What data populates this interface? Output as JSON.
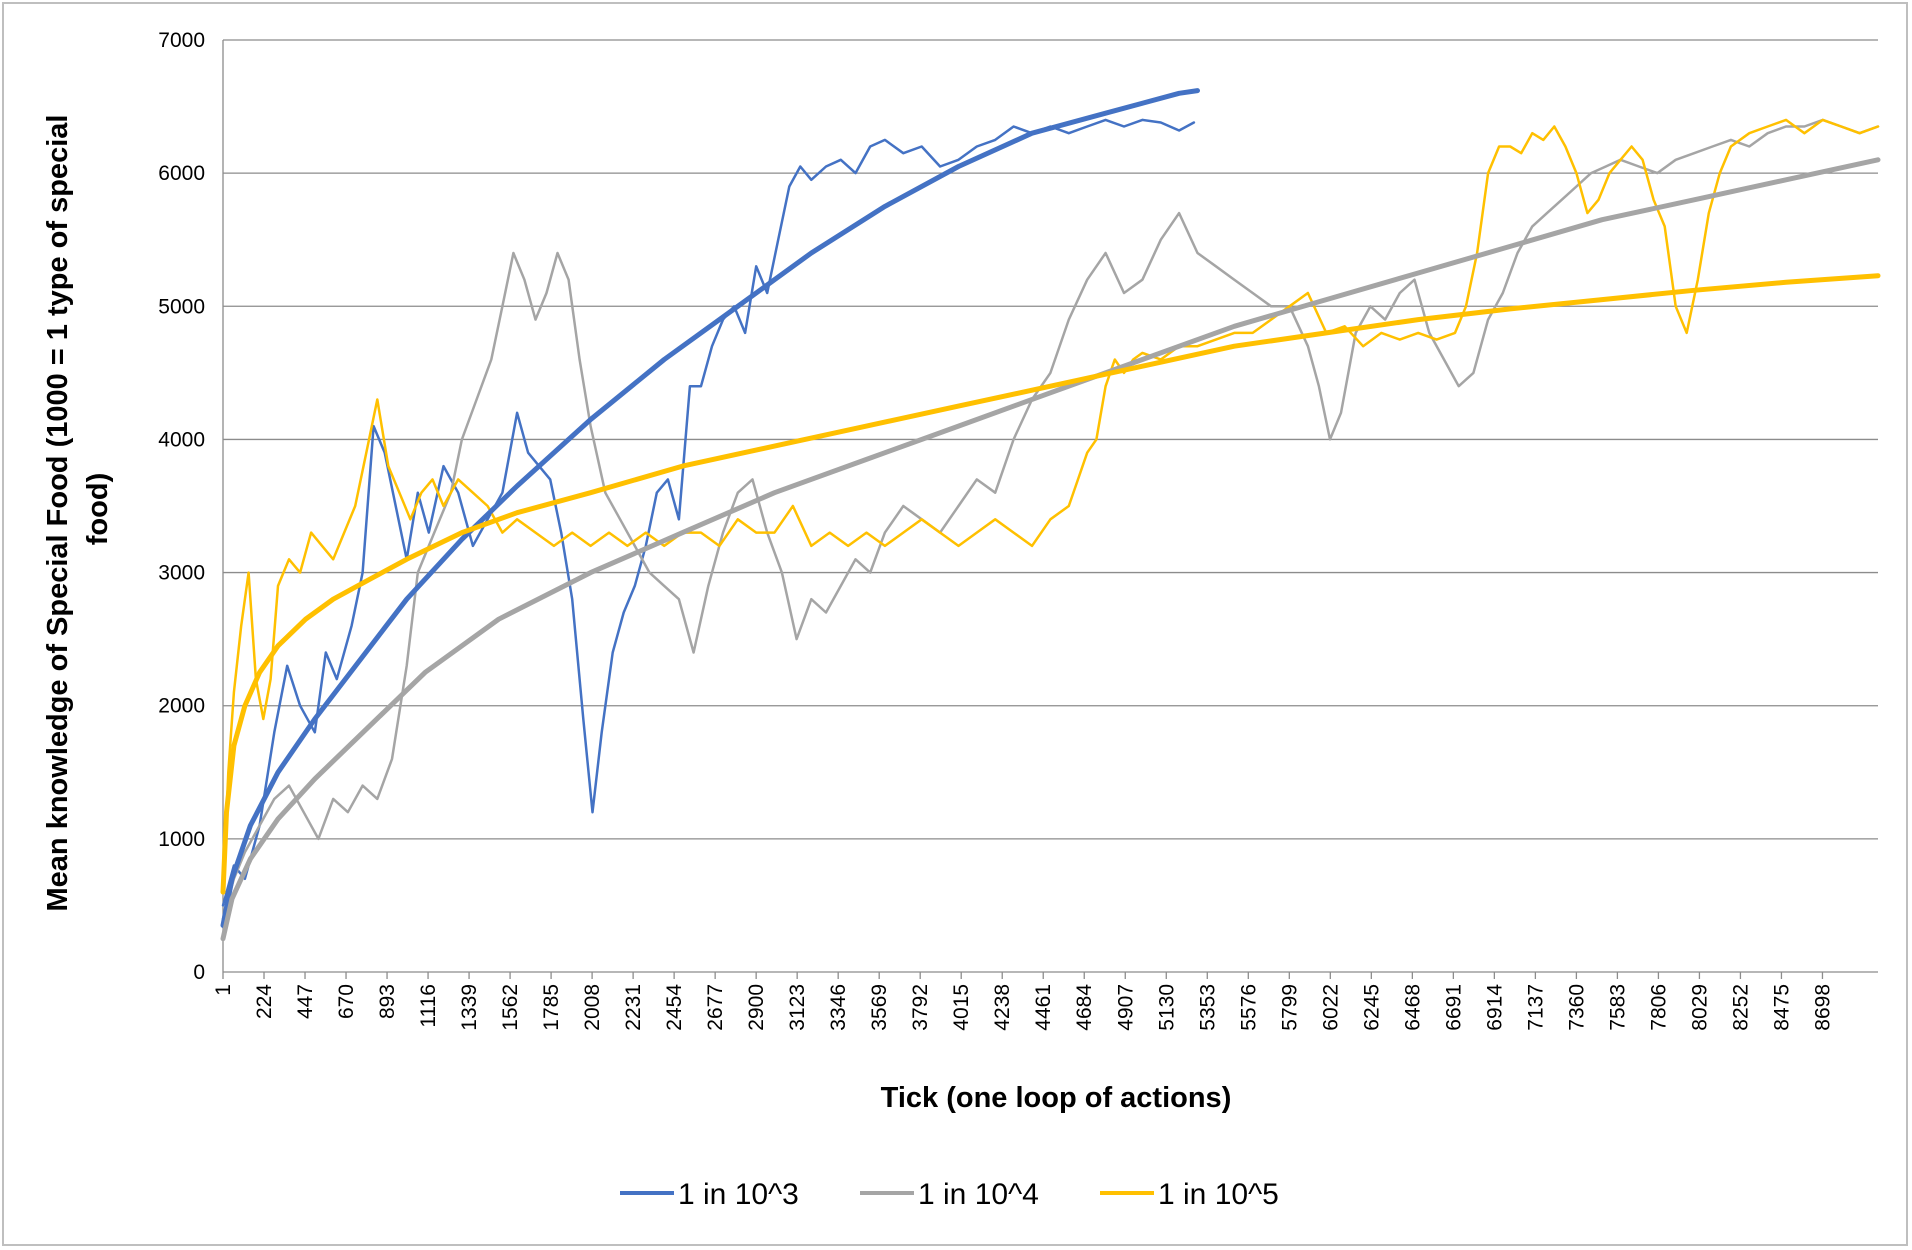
{
  "chart_data": {
    "type": "line",
    "title": "",
    "xlabel": "Tick (one loop of actions)",
    "ylabel_lines": [
      "Mean knowledge of Special Food (1000 = 1 type of special",
      "food)"
    ],
    "ylim": [
      0,
      7000
    ],
    "yticks": [
      0,
      1000,
      2000,
      3000,
      4000,
      5000,
      6000,
      7000
    ],
    "xlim": [
      1,
      9000
    ],
    "xticks": [
      "1",
      "224",
      "447",
      "670",
      "893",
      "1116",
      "1339",
      "1562",
      "1785",
      "2008",
      "2231",
      "2454",
      "2677",
      "2900",
      "3123",
      "3346",
      "3569",
      "3792",
      "4015",
      "4238",
      "4461",
      "4684",
      "4907",
      "5130",
      "5353",
      "5576",
      "5799",
      "6022",
      "6245",
      "6468",
      "6691",
      "6914",
      "7137",
      "7360",
      "7583",
      "7806",
      "8029",
      "8252",
      "8475",
      "8698"
    ],
    "grid": "horizontal",
    "legend_position": "bottom",
    "series": [
      {
        "name": "1 in 10^3",
        "color": "#4472c4",
        "x": [
          1,
          60,
          120,
          200,
          280,
          350,
          420,
          500,
          560,
          620,
          700,
          760,
          820,
          880,
          940,
          1000,
          1060,
          1120,
          1200,
          1280,
          1360,
          1440,
          1520,
          1600,
          1660,
          1720,
          1780,
          1840,
          1900,
          1960,
          2010,
          2060,
          2120,
          2180,
          2240,
          2300,
          2360,
          2420,
          2480,
          2540,
          2600,
          2660,
          2720,
          2780,
          2840,
          2900,
          2960,
          3020,
          3080,
          3140,
          3200,
          3280,
          3360,
          3440,
          3520,
          3600,
          3700,
          3800,
          3900,
          4000,
          4100,
          4200,
          4300,
          4400,
          4500,
          4600,
          4700,
          4800,
          4900,
          5000,
          5100,
          5200,
          5280
        ],
        "y": [
          500,
          800,
          700,
          1100,
          1800,
          2300,
          2000,
          1800,
          2400,
          2200,
          2600,
          3000,
          4100,
          3900,
          3500,
          3100,
          3600,
          3300,
          3800,
          3600,
          3200,
          3400,
          3600,
          4200,
          3900,
          3800,
          3700,
          3300,
          2800,
          1900,
          1200,
          1800,
          2400,
          2700,
          2900,
          3200,
          3600,
          3700,
          3400,
          4400,
          4400,
          4700,
          4900,
          5000,
          4800,
          5300,
          5100,
          5500,
          5900,
          6050,
          5950,
          6050,
          6100,
          6000,
          6200,
          6250,
          6150,
          6200,
          6050,
          6100,
          6200,
          6250,
          6350,
          6300,
          6350,
          6300,
          6350,
          6400,
          6350,
          6400,
          6380,
          6320,
          6380
        ]
      },
      {
        "name": "1 in 10^4",
        "color": "#a5a5a5",
        "x": [
          1,
          60,
          120,
          200,
          280,
          360,
          440,
          520,
          600,
          680,
          760,
          840,
          920,
          1000,
          1060,
          1120,
          1180,
          1240,
          1300,
          1380,
          1460,
          1520,
          1580,
          1640,
          1700,
          1760,
          1820,
          1880,
          1940,
          2000,
          2080,
          2160,
          2240,
          2320,
          2400,
          2480,
          2560,
          2640,
          2720,
          2800,
          2880,
          2960,
          3040,
          3120,
          3200,
          3280,
          3360,
          3440,
          3520,
          3600,
          3700,
          3800,
          3900,
          4000,
          4100,
          4200,
          4300,
          4400,
          4500,
          4600,
          4700,
          4800,
          4900,
          5000,
          5100,
          5200,
          5300,
          5400,
          5500,
          5600,
          5700,
          5800,
          5900,
          5960,
          6020,
          6080,
          6160,
          6240,
          6320,
          6400,
          6480,
          6560,
          6640,
          6720,
          6800,
          6880,
          6960,
          7040,
          7120,
          7200,
          7280,
          7360,
          7440,
          7520,
          7600,
          7700,
          7800,
          7900,
          8000,
          8100,
          8200,
          8300,
          8400,
          8500,
          8600,
          8700,
          8800,
          8900,
          9000
        ],
        "y": [
          400,
          700,
          900,
          1100,
          1300,
          1400,
          1200,
          1000,
          1300,
          1200,
          1400,
          1300,
          1600,
          2300,
          3000,
          3200,
          3400,
          3600,
          4000,
          4300,
          4600,
          5000,
          5400,
          5200,
          4900,
          5100,
          5400,
          5200,
          4600,
          4100,
          3600,
          3400,
          3200,
          3000,
          2900,
          2800,
          2400,
          2900,
          3300,
          3600,
          3700,
          3300,
          3000,
          2500,
          2800,
          2700,
          2900,
          3100,
          3000,
          3300,
          3500,
          3400,
          3300,
          3500,
          3700,
          3600,
          4000,
          4300,
          4500,
          4900,
          5200,
          5400,
          5100,
          5200,
          5500,
          5700,
          5400,
          5300,
          5200,
          5100,
          5000,
          5000,
          4700,
          4400,
          4000,
          4200,
          4800,
          5000,
          4900,
          5100,
          5200,
          4800,
          4600,
          4400,
          4500,
          4900,
          5100,
          5400,
          5600,
          5700,
          5800,
          5900,
          6000,
          6050,
          6100,
          6050,
          6000,
          6100,
          6150,
          6200,
          6250,
          6200,
          6300,
          6350,
          6350,
          6400,
          6350,
          6300,
          6350
        ]
      },
      {
        "name": "1 in 10^5",
        "color": "#ffc000",
        "x": [
          1,
          30,
          60,
          100,
          140,
          180,
          220,
          260,
          300,
          360,
          420,
          480,
          540,
          600,
          660,
          720,
          780,
          840,
          900,
          960,
          1020,
          1080,
          1140,
          1200,
          1280,
          1360,
          1440,
          1520,
          1600,
          1700,
          1800,
          1900,
          2000,
          2100,
          2200,
          2300,
          2400,
          2500,
          2600,
          2700,
          2800,
          2900,
          3000,
          3100,
          3200,
          3300,
          3400,
          3500,
          3600,
          3700,
          3800,
          3900,
          4000,
          4100,
          4200,
          4300,
          4400,
          4500,
          4600,
          4650,
          4700,
          4750,
          4800,
          4850,
          4900,
          4950,
          5000,
          5100,
          5200,
          5300,
          5400,
          5500,
          5600,
          5700,
          5800,
          5900,
          6000,
          6100,
          6200,
          6300,
          6400,
          6500,
          6600,
          6700,
          6760,
          6820,
          6880,
          6940,
          7000,
          7060,
          7120,
          7180,
          7240,
          7300,
          7360,
          7420,
          7480,
          7540,
          7600,
          7660,
          7720,
          7780,
          7840,
          7900,
          7960,
          8020,
          8080,
          8140,
          8200,
          8300,
          8400,
          8500,
          8600,
          8700,
          8800,
          8900,
          9000
        ],
        "y": [
          600,
          1500,
          2100,
          2600,
          3000,
          2200,
          1900,
          2200,
          2900,
          3100,
          3000,
          3300,
          3200,
          3100,
          3300,
          3500,
          3900,
          4300,
          3800,
          3600,
          3400,
          3600,
          3700,
          3500,
          3700,
          3600,
          3500,
          3300,
          3400,
          3300,
          3200,
          3300,
          3200,
          3300,
          3200,
          3300,
          3200,
          3300,
          3300,
          3200,
          3400,
          3300,
          3300,
          3500,
          3200,
          3300,
          3200,
          3300,
          3200,
          3300,
          3400,
          3300,
          3200,
          3300,
          3400,
          3300,
          3200,
          3400,
          3500,
          3700,
          3900,
          4000,
          4400,
          4600,
          4500,
          4600,
          4650,
          4600,
          4700,
          4700,
          4750,
          4800,
          4800,
          4900,
          5000,
          5100,
          4800,
          4850,
          4700,
          4800,
          4750,
          4800,
          4750,
          4800,
          5000,
          5400,
          6000,
          6200,
          6200,
          6150,
          6300,
          6250,
          6350,
          6200,
          6000,
          5700,
          5800,
          6000,
          6100,
          6200,
          6100,
          5800,
          5600,
          5000,
          4800,
          5200,
          5700,
          6000,
          6200,
          6300,
          6350,
          6400,
          6300,
          6400,
          6350,
          6300,
          6350
        ]
      },
      {
        "name": "",
        "color": "#4472c4",
        "trend": true,
        "x": [
          1,
          50,
          150,
          300,
          500,
          750,
          1000,
          1300,
          1600,
          2000,
          2400,
          2800,
          3200,
          3600,
          4000,
          4400,
          4800,
          5200,
          5300
        ],
        "y": [
          350,
          700,
          1100,
          1500,
          1900,
          2350,
          2800,
          3250,
          3650,
          4150,
          4600,
          5000,
          5400,
          5750,
          6050,
          6300,
          6450,
          6600,
          6620
        ]
      },
      {
        "name": "",
        "color": "#a5a5a5",
        "trend": true,
        "x": [
          1,
          50,
          150,
          300,
          500,
          800,
          1100,
          1500,
          2000,
          2500,
          3000,
          3500,
          4000,
          4500,
          5000,
          5500,
          6000,
          6500,
          7000,
          7500,
          8000,
          8500,
          9000
        ],
        "y": [
          250,
          550,
          850,
          1150,
          1450,
          1850,
          2250,
          2650,
          3000,
          3300,
          3600,
          3850,
          4100,
          4350,
          4600,
          4850,
          5050,
          5250,
          5450,
          5650,
          5800,
          5950,
          6100
        ]
      },
      {
        "name": "",
        "color": "#ffc000",
        "trend": true,
        "x": [
          1,
          20,
          60,
          120,
          200,
          300,
          450,
          600,
          800,
          1000,
          1300,
          1600,
          2000,
          2500,
          3000,
          3500,
          4000,
          4500,
          5000,
          5500,
          6000,
          6500,
          7000,
          7500,
          8000,
          8500,
          9000
        ],
        "y": [
          600,
          1200,
          1700,
          2000,
          2250,
          2450,
          2650,
          2800,
          2950,
          3100,
          3300,
          3450,
          3600,
          3800,
          3950,
          4100,
          4250,
          4400,
          4550,
          4700,
          4800,
          4900,
          4980,
          5050,
          5120,
          5180,
          5230
        ]
      }
    ]
  }
}
